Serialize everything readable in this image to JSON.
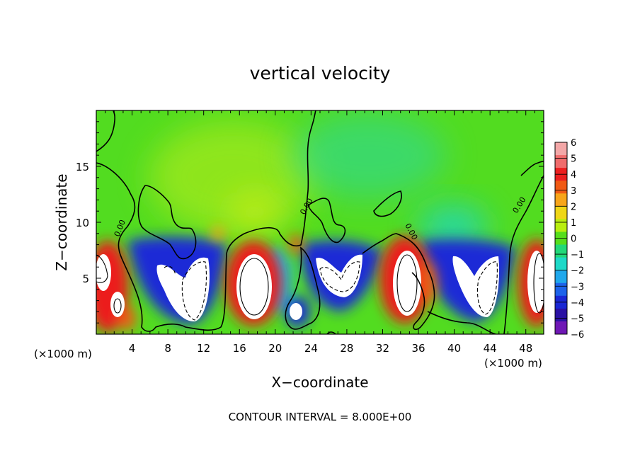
{
  "chart_data": {
    "type": "heatmap",
    "title": "vertical velocity",
    "xlabel": "X−coordinate",
    "ylabel": "Z−coordinate",
    "x_unit_left": "(×1000 m)",
    "x_unit_right": "(×1000 m)",
    "footer": "CONTOUR INTERVAL = 8.000E+00",
    "xlim": [
      0,
      50
    ],
    "ylim": [
      0,
      20
    ],
    "xticks": [
      4,
      8,
      12,
      16,
      20,
      24,
      28,
      32,
      36,
      40,
      44,
      48
    ],
    "yticks": [
      5,
      10,
      15
    ],
    "contour_label": "0.00",
    "colorbar": {
      "ticks": [
        "6",
        "5",
        "4",
        "3",
        "2",
        "1",
        "0",
        "−1",
        "−2",
        "−3",
        "−4",
        "−5",
        "−6"
      ],
      "colors": [
        "#f3a7a7",
        "#ef6c6c",
        "#ec1f1f",
        "#f05a14",
        "#f7a51a",
        "#efd617",
        "#b9ee10",
        "#56de1c",
        "#22d879",
        "#1ed9c8",
        "#20a8ec",
        "#1d63ea",
        "#1a27d4",
        "#2a11a4",
        "#6f18b5"
      ]
    },
    "updrafts": [
      {
        "x": 1.0,
        "z": 5.0,
        "value": 8
      },
      {
        "x": 18.0,
        "z": 5.0,
        "value": 8
      },
      {
        "x": 34.0,
        "z": 5.0,
        "value": 8
      },
      {
        "x": 49.5,
        "z": 5.0,
        "value": 8
      }
    ],
    "downdrafts": [
      {
        "x": 10.5,
        "z": 4.5,
        "value": -8
      },
      {
        "x": 27.5,
        "z": 5.0,
        "value": -8
      },
      {
        "x": 43.5,
        "z": 4.5,
        "value": -8
      }
    ]
  }
}
